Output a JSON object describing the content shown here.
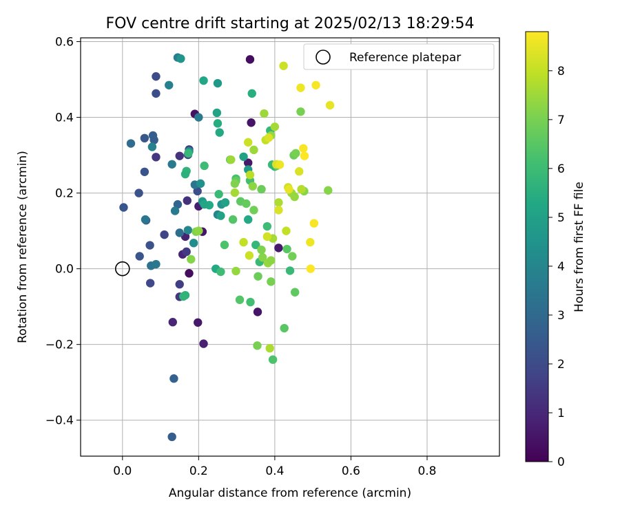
{
  "chart_data": {
    "type": "scatter",
    "title": "FOV centre drift starting at 2025/02/13 18:29:54",
    "xlabel": "Angular distance from reference (arcmin)",
    "ylabel": "Rotation from reference (arcmin)",
    "xlim": [
      -0.11,
      0.99
    ],
    "ylim": [
      -0.495,
      0.61
    ],
    "xticks": [
      0.0,
      0.2,
      0.4,
      0.6,
      0.8
    ],
    "yticks": [
      -0.4,
      -0.2,
      0.0,
      0.2,
      0.4,
      0.6
    ],
    "xtick_labels": [
      "0.0",
      "0.2",
      "0.4",
      "0.6",
      "0.8"
    ],
    "ytick_labels": [
      "−0.4",
      "−0.2",
      "0.0",
      "0.2",
      "0.4",
      "0.6"
    ],
    "grid": true,
    "legend": {
      "placement": "upper-right",
      "entries": [
        "Reference platepar"
      ]
    },
    "reference_point": {
      "label": "Reference platepar",
      "x": 0.0,
      "y": 0.0
    },
    "colorbar": {
      "label": "Hours from first FF file",
      "colormap": "viridis",
      "range": [
        0,
        8.8
      ],
      "ticks": [
        0,
        1,
        2,
        3,
        4,
        5,
        6,
        7,
        8
      ],
      "tick_labels": [
        "0",
        "1",
        "2",
        "3",
        "4",
        "5",
        "6",
        "7",
        "8"
      ]
    },
    "series": [
      {
        "columns": [
          "x",
          "y",
          "hours"
        ],
        "points": [
          [
            0.335,
            0.553,
            0.3
          ],
          [
            0.19,
            0.409,
            0.4
          ],
          [
            0.338,
            0.386,
            0.5
          ],
          [
            0.33,
            0.28,
            0.6
          ],
          [
            0.2,
            0.165,
            0.7
          ],
          [
            0.21,
            0.098,
            0.5
          ],
          [
            0.41,
            0.055,
            0.6
          ],
          [
            0.165,
            0.085,
            0.8
          ],
          [
            0.158,
            0.038,
            0.9
          ],
          [
            0.175,
            -0.012,
            0.3
          ],
          [
            0.355,
            -0.114,
            0.5
          ],
          [
            0.132,
            -0.141,
            0.9
          ],
          [
            0.198,
            -0.142,
            0.6
          ],
          [
            0.213,
            -0.198,
            0.8
          ],
          [
            0.17,
            0.18,
            1.2
          ],
          [
            0.15,
            0.298,
            1.3
          ],
          [
            0.088,
            0.295,
            1.4
          ],
          [
            0.15,
            -0.074,
            1.4
          ],
          [
            0.15,
            -0.041,
            1.6
          ],
          [
            0.168,
            0.045,
            1.5
          ],
          [
            0.11,
            0.09,
            1.8
          ],
          [
            0.073,
            -0.038,
            1.9
          ],
          [
            0.175,
            0.315,
            1.7
          ],
          [
            0.172,
            0.301,
            1.8
          ],
          [
            0.088,
            0.508,
            2.0
          ],
          [
            0.088,
            0.463,
            2.1
          ],
          [
            0.043,
            0.2,
            2.2
          ],
          [
            0.045,
            0.033,
            2.3
          ],
          [
            0.197,
            0.205,
            2.1
          ],
          [
            0.072,
            0.062,
            2.2
          ],
          [
            0.003,
            0.162,
            2.3
          ],
          [
            0.058,
            0.256,
            2.3
          ],
          [
            0.058,
            0.345,
            2.4
          ],
          [
            0.083,
            0.34,
            2.5
          ],
          [
            0.08,
            0.352,
            2.6
          ],
          [
            0.062,
            0.128,
            2.6
          ],
          [
            0.145,
            0.17,
            2.8
          ],
          [
            0.135,
            -0.29,
            2.7
          ],
          [
            0.13,
            -0.444,
            2.6
          ],
          [
            0.022,
            0.331,
            3.1
          ],
          [
            0.15,
            0.095,
            3.2
          ],
          [
            0.075,
            0.008,
            3.3
          ],
          [
            0.06,
            0.13,
            3.4
          ],
          [
            0.19,
            0.222,
            3.4
          ],
          [
            0.2,
            0.4,
            3.6
          ],
          [
            0.145,
            0.558,
            3.7
          ],
          [
            0.13,
            0.276,
            3.6
          ],
          [
            0.122,
            0.485,
            3.8
          ],
          [
            0.138,
            0.153,
            3.6
          ],
          [
            0.088,
            0.012,
            3.5
          ],
          [
            0.078,
            0.322,
            3.8
          ],
          [
            0.25,
            0.143,
            3.9
          ],
          [
            0.172,
            0.102,
            4.0
          ],
          [
            0.175,
            0.31,
            4.4
          ],
          [
            0.153,
            0.555,
            4.5
          ],
          [
            0.187,
            0.068,
            4.3
          ],
          [
            0.205,
            0.225,
            4.4
          ],
          [
            0.26,
            0.17,
            4.5
          ],
          [
            0.25,
            0.49,
            4.7
          ],
          [
            0.21,
            0.178,
            4.6
          ],
          [
            0.33,
            0.262,
            4.8
          ],
          [
            0.318,
            0.296,
            5.0
          ],
          [
            0.27,
            0.175,
            5.0
          ],
          [
            0.258,
            0.14,
            5.0
          ],
          [
            0.248,
            0.412,
            5.1
          ],
          [
            0.213,
            0.497,
            5.2
          ],
          [
            0.228,
            0.168,
            5.3
          ],
          [
            0.215,
            0.17,
            5.2
          ],
          [
            0.245,
            0.0,
            5.3
          ],
          [
            0.255,
            0.36,
            5.3
          ],
          [
            0.25,
            0.384,
            5.4
          ],
          [
            0.33,
            0.13,
            5.3
          ],
          [
            0.34,
            0.463,
            5.5
          ],
          [
            0.168,
            0.258,
            5.7
          ],
          [
            0.165,
            0.25,
            5.6
          ],
          [
            0.173,
            0.305,
            5.8
          ],
          [
            0.165,
            -0.07,
            5.6
          ],
          [
            0.16,
            -0.073,
            5.7
          ],
          [
            0.253,
            0.197,
            5.9
          ],
          [
            0.215,
            0.272,
            6.0
          ],
          [
            0.36,
            0.018,
            5.9
          ],
          [
            0.388,
            0.365,
            5.8
          ],
          [
            0.393,
            0.275,
            5.9
          ],
          [
            0.4,
            0.27,
            5.7
          ],
          [
            0.38,
            0.112,
            6.0
          ],
          [
            0.44,
            -0.005,
            5.9
          ],
          [
            0.335,
            0.233,
            6.1
          ],
          [
            0.35,
            0.063,
            5.8
          ],
          [
            0.258,
            -0.008,
            6.0
          ],
          [
            0.268,
            0.063,
            6.3
          ],
          [
            0.29,
            0.13,
            6.4
          ],
          [
            0.298,
            0.238,
            6.2
          ],
          [
            0.336,
            -0.088,
            6.1
          ],
          [
            0.308,
            -0.082,
            6.4
          ],
          [
            0.395,
            -0.24,
            6.3
          ],
          [
            0.425,
            -0.157,
            6.5
          ],
          [
            0.453,
            -0.062,
            6.6
          ],
          [
            0.283,
            0.288,
            6.4
          ],
          [
            0.298,
            0.232,
            6.7
          ],
          [
            0.31,
            0.178,
            6.6
          ],
          [
            0.325,
            0.172,
            6.7
          ],
          [
            0.345,
            0.155,
            6.9
          ],
          [
            0.365,
            0.21,
            6.8
          ],
          [
            0.405,
            0.272,
            6.7
          ],
          [
            0.432,
            0.052,
            6.5
          ],
          [
            0.446,
            0.033,
            6.9
          ],
          [
            0.468,
            0.415,
            7.0
          ],
          [
            0.45,
            0.3,
            6.8
          ],
          [
            0.455,
            0.305,
            7.0
          ],
          [
            0.356,
            -0.02,
            6.8
          ],
          [
            0.354,
            -0.203,
            7.0
          ],
          [
            0.39,
            -0.034,
            7.0
          ],
          [
            0.193,
            0.098,
            7.1
          ],
          [
            0.18,
            0.025,
            7.2
          ],
          [
            0.2,
            0.1,
            7.3
          ],
          [
            0.285,
            0.288,
            7.5
          ],
          [
            0.295,
            0.225,
            7.1
          ],
          [
            0.342,
            0.218,
            7.3
          ],
          [
            0.368,
            0.03,
            7.2
          ],
          [
            0.382,
            0.015,
            7.4
          ],
          [
            0.39,
            0.022,
            7.3
          ],
          [
            0.365,
            0.05,
            7.1
          ],
          [
            0.372,
            0.41,
            7.5
          ],
          [
            0.39,
            0.352,
            7.4
          ],
          [
            0.4,
            0.375,
            7.6
          ],
          [
            0.444,
            0.2,
            7.5
          ],
          [
            0.452,
            0.19,
            7.4
          ],
          [
            0.477,
            0.205,
            7.2
          ],
          [
            0.395,
            0.08,
            7.6
          ],
          [
            0.345,
            0.314,
            7.5
          ],
          [
            0.298,
            -0.006,
            7.4
          ],
          [
            0.387,
            -0.21,
            7.7
          ],
          [
            0.295,
            0.201,
            7.6
          ],
          [
            0.47,
            0.21,
            7.8
          ],
          [
            0.41,
            0.175,
            7.7
          ],
          [
            0.335,
            0.248,
            7.9
          ],
          [
            0.376,
            0.34,
            8.0
          ],
          [
            0.33,
            0.334,
            8.1
          ],
          [
            0.318,
            0.07,
            8.0
          ],
          [
            0.333,
            0.035,
            8.1
          ],
          [
            0.38,
            0.085,
            8.2
          ],
          [
            0.384,
            0.346,
            8.3
          ],
          [
            0.435,
            0.215,
            8.1
          ],
          [
            0.43,
            0.1,
            8.0
          ],
          [
            0.404,
            0.276,
            8.3
          ],
          [
            0.41,
            0.155,
            8.3
          ],
          [
            0.464,
            0.257,
            8.3
          ],
          [
            0.423,
            0.536,
            8.1
          ],
          [
            0.437,
            0.21,
            8.5
          ],
          [
            0.413,
            0.275,
            8.6
          ],
          [
            0.468,
            0.478,
            8.6
          ],
          [
            0.475,
            0.318,
            8.7
          ],
          [
            0.478,
            0.298,
            8.8
          ],
          [
            0.493,
            0.07,
            8.6
          ],
          [
            0.503,
            0.12,
            8.7
          ],
          [
            0.508,
            0.485,
            8.7
          ],
          [
            0.545,
            0.432,
            8.5
          ],
          [
            0.494,
            0.0,
            8.8
          ],
          [
            0.54,
            0.207,
            7.2
          ]
        ]
      }
    ]
  }
}
